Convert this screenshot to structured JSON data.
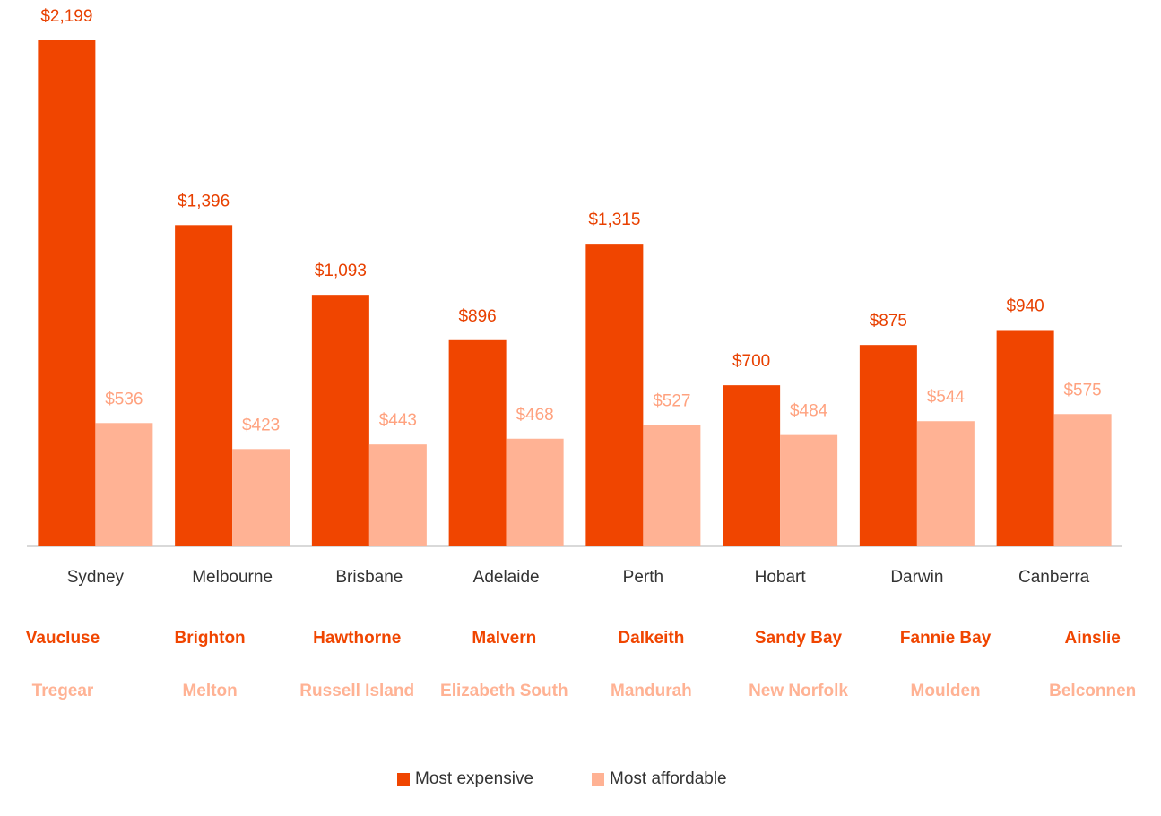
{
  "chart_data": {
    "type": "bar",
    "categories": [
      "Sydney",
      "Melbourne",
      "Brisbane",
      "Adelaide",
      "Perth",
      "Hobart",
      "Darwin",
      "Canberra"
    ],
    "series": [
      {
        "name": "Most expensive",
        "color": "#f04500",
        "values": [
          2199,
          1396,
          1093,
          896,
          1315,
          700,
          875,
          940
        ],
        "value_labels": [
          "$2,199",
          "$1,396",
          "$1,093",
          "$896",
          "$1,315",
          "$700",
          "$875",
          "$940"
        ],
        "suburbs": [
          "Vaucluse",
          "Brighton",
          "Hawthorne",
          "Malvern",
          "Dalkeith",
          "Sandy Bay",
          "Fannie Bay",
          "Ainslie"
        ]
      },
      {
        "name": "Most affordable",
        "color": "#ffb294",
        "values": [
          536,
          423,
          443,
          468,
          527,
          484,
          544,
          575
        ],
        "value_labels": [
          "$536",
          "$423",
          "$443",
          "$468",
          "$527",
          "$484",
          "$544",
          "$575"
        ],
        "suburbs": [
          "Tregear",
          "Melton",
          "Russell Island",
          "Elizabeth South",
          "Mandurah",
          "New Norfolk",
          "Moulden",
          "Belconnen"
        ]
      }
    ],
    "legend": "bottom"
  }
}
